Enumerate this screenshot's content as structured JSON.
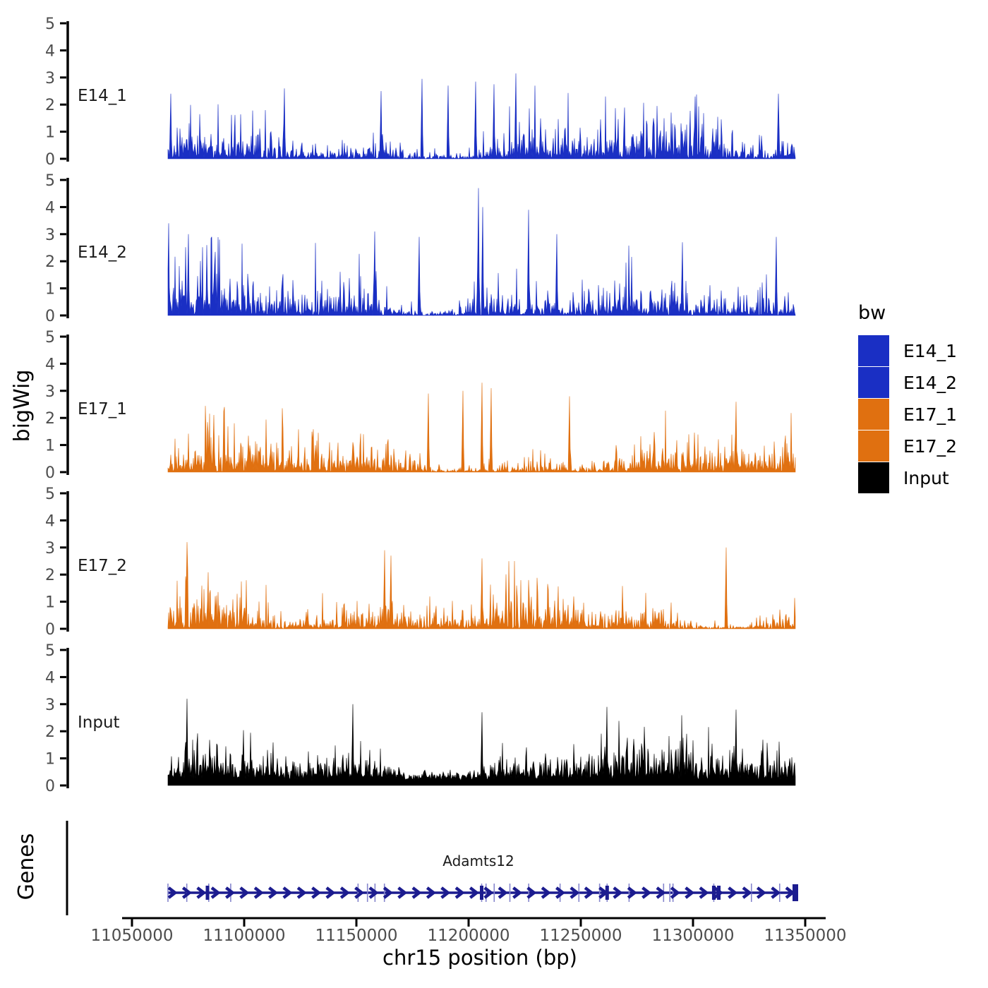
{
  "chart_data": {
    "type": "area",
    "title": "",
    "x_axis": {
      "label": "chr15 position (bp)",
      "tick_values": [
        11050000,
        11100000,
        11150000,
        11200000,
        11250000,
        11300000,
        11350000
      ],
      "range": [
        11045000,
        11360000
      ]
    },
    "y_axis": {
      "label": "bigWig",
      "tick_values": [
        0,
        1,
        2,
        3,
        4,
        5
      ],
      "range": [
        0,
        5
      ]
    },
    "region": {
      "chrom": "chr15",
      "start": 11066000,
      "end": 11345500
    },
    "tracks": [
      {
        "label": "E14_1",
        "color": "#1A2FC4",
        "seed": 101,
        "density": 0.46,
        "floor": 0.0,
        "max": 2.9,
        "peaks": [
          [
            0.005,
            2.4
          ],
          [
            0.186,
            2.6
          ],
          [
            0.34,
            2.5
          ],
          [
            0.405,
            2.95
          ],
          [
            0.447,
            2.7
          ],
          [
            0.49,
            2.85
          ],
          [
            0.52,
            2.75
          ],
          [
            0.555,
            3.15
          ],
          [
            0.84,
            2.3
          ],
          [
            0.973,
            2.4
          ]
        ]
      },
      {
        "label": "E14_2",
        "color": "#1A2FC4",
        "seed": 202,
        "density": 0.5,
        "floor": 0.0,
        "max": 3.0,
        "peaks": [
          [
            0.0,
            3.4
          ],
          [
            0.033,
            3.0
          ],
          [
            0.07,
            2.9
          ],
          [
            0.33,
            3.1
          ],
          [
            0.4,
            2.9
          ],
          [
            0.495,
            4.7
          ],
          [
            0.502,
            4.0
          ],
          [
            0.575,
            3.9
          ],
          [
            0.62,
            3.0
          ],
          [
            0.82,
            2.7
          ],
          [
            0.97,
            2.9
          ]
        ]
      },
      {
        "label": "E17_1",
        "color": "#E07010",
        "seed": 303,
        "density": 0.45,
        "floor": 0.0,
        "max": 2.7,
        "peaks": [
          [
            0.415,
            2.9
          ],
          [
            0.47,
            3.0
          ],
          [
            0.5,
            3.3
          ],
          [
            0.515,
            3.1
          ],
          [
            0.64,
            2.8
          ],
          [
            0.905,
            2.6
          ]
        ]
      },
      {
        "label": "E17_2",
        "color": "#E07010",
        "seed": 404,
        "density": 0.45,
        "floor": 0.0,
        "max": 2.7,
        "peaks": [
          [
            0.03,
            3.2
          ],
          [
            0.345,
            2.9
          ],
          [
            0.355,
            2.7
          ],
          [
            0.5,
            2.6
          ],
          [
            0.89,
            3.0
          ]
        ]
      },
      {
        "label": "Input",
        "color": "#000000",
        "seed": 505,
        "density": 0.42,
        "floor": 0.38,
        "max": 2.6,
        "peaks": [
          [
            0.03,
            3.2
          ],
          [
            0.295,
            3.0
          ],
          [
            0.5,
            2.7
          ],
          [
            0.7,
            2.9
          ],
          [
            0.905,
            2.8
          ]
        ]
      }
    ],
    "gene_track": {
      "axis_label": "Genes",
      "gene": {
        "name": "Adamts12",
        "strand": "+",
        "color": "#1C1C8F",
        "exon_color_thin": "#8585CD",
        "arrow_count": 44,
        "exons_thin_frac": [
          0.0,
          0.03,
          0.065,
          0.1,
          0.303,
          0.318,
          0.33,
          0.345,
          0.5,
          0.507,
          0.52,
          0.545,
          0.575,
          0.625,
          0.655,
          0.688,
          0.7,
          0.735,
          0.79,
          0.8,
          0.805,
          0.87,
          0.93,
          0.975
        ],
        "exons_thick_frac": [
          0.063,
          0.5,
          0.7,
          0.87,
          0.878
        ],
        "end_block_frac": 1.0
      }
    },
    "legend": {
      "title": "bw",
      "entries": [
        {
          "label": "E14_1",
          "color": "#1A2FC4"
        },
        {
          "label": "E14_2",
          "color": "#1A2FC4"
        },
        {
          "label": "E17_1",
          "color": "#E07010"
        },
        {
          "label": "E17_2",
          "color": "#E07010"
        },
        {
          "label": "Input",
          "color": "#000000"
        }
      ]
    },
    "text_color": "#4D4D4D",
    "axis_color": "#000000"
  }
}
